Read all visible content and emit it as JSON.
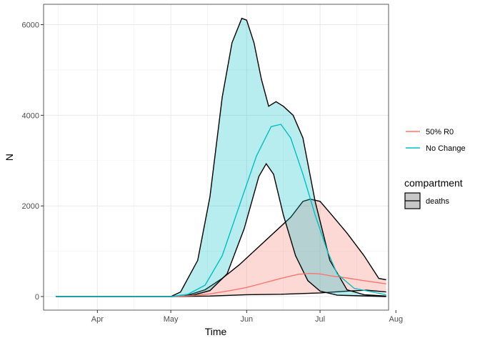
{
  "chart_data": {
    "type": "area",
    "xlabel": "Time",
    "ylabel": "N",
    "x_ticks": [
      "Apr",
      "May",
      "Jun",
      "Jul",
      "Aug"
    ],
    "y_ticks": [
      0,
      2000,
      4000,
      6000
    ],
    "xlim": [
      "2020-03-10",
      "2020-07-29"
    ],
    "ylim": [
      -300,
      6450
    ],
    "grid": true,
    "legend_position": "right",
    "legends": [
      {
        "title": "",
        "entries": [
          "50% R0",
          "No Change"
        ]
      },
      {
        "title": "compartment",
        "entries": [
          "deaths"
        ]
      }
    ],
    "series": [
      {
        "name": "50% R0",
        "color": "#F8766D",
        "median": [
          [
            "2020-03-15",
            0
          ],
          [
            "2020-04-15",
            0
          ],
          [
            "2020-05-01",
            0
          ],
          [
            "2020-05-10",
            20
          ],
          [
            "2020-05-17",
            60
          ],
          [
            "2020-05-24",
            120
          ],
          [
            "2020-06-01",
            200
          ],
          [
            "2020-06-08",
            300
          ],
          [
            "2020-06-15",
            400
          ],
          [
            "2020-06-22",
            490
          ],
          [
            "2020-06-27",
            510
          ],
          [
            "2020-07-01",
            500
          ],
          [
            "2020-07-05",
            460
          ],
          [
            "2020-07-12",
            410
          ],
          [
            "2020-07-19",
            350
          ],
          [
            "2020-07-28",
            280
          ]
        ],
        "lower": [
          [
            "2020-03-15",
            0
          ],
          [
            "2020-04-15",
            0
          ],
          [
            "2020-05-01",
            0
          ],
          [
            "2020-05-17",
            10
          ],
          [
            "2020-06-01",
            40
          ],
          [
            "2020-06-15",
            50
          ],
          [
            "2020-07-01",
            80
          ],
          [
            "2020-07-12",
            120
          ],
          [
            "2020-07-20",
            140
          ],
          [
            "2020-07-28",
            100
          ]
        ],
        "upper": [
          [
            "2020-03-15",
            0
          ],
          [
            "2020-04-15",
            0
          ],
          [
            "2020-05-01",
            0
          ],
          [
            "2020-05-08",
            30
          ],
          [
            "2020-05-15",
            150
          ],
          [
            "2020-05-22",
            400
          ],
          [
            "2020-05-29",
            700
          ],
          [
            "2020-06-05",
            1050
          ],
          [
            "2020-06-12",
            1400
          ],
          [
            "2020-06-19",
            1750
          ],
          [
            "2020-06-24",
            2100
          ],
          [
            "2020-06-27",
            2150
          ],
          [
            "2020-07-01",
            2100
          ],
          [
            "2020-07-05",
            1850
          ],
          [
            "2020-07-12",
            1400
          ],
          [
            "2020-07-19",
            900
          ],
          [
            "2020-07-25",
            400
          ],
          [
            "2020-07-28",
            370
          ]
        ]
      },
      {
        "name": "No Change",
        "color": "#00BFC4",
        "median": [
          [
            "2020-03-15",
            0
          ],
          [
            "2020-04-15",
            0
          ],
          [
            "2020-05-01",
            0
          ],
          [
            "2020-05-08",
            50
          ],
          [
            "2020-05-15",
            250
          ],
          [
            "2020-05-22",
            900
          ],
          [
            "2020-05-29",
            2000
          ],
          [
            "2020-06-05",
            3100
          ],
          [
            "2020-06-11",
            3750
          ],
          [
            "2020-06-15",
            3800
          ],
          [
            "2020-06-19",
            3500
          ],
          [
            "2020-06-24",
            2700
          ],
          [
            "2020-06-29",
            1800
          ],
          [
            "2020-07-04",
            1000
          ],
          [
            "2020-07-08",
            500
          ],
          [
            "2020-07-15",
            180
          ],
          [
            "2020-07-28",
            40
          ]
        ],
        "lower": [
          [
            "2020-03-15",
            0
          ],
          [
            "2020-04-15",
            0
          ],
          [
            "2020-05-01",
            0
          ],
          [
            "2020-05-10",
            30
          ],
          [
            "2020-05-17",
            130
          ],
          [
            "2020-05-24",
            500
          ],
          [
            "2020-05-31",
            1500
          ],
          [
            "2020-06-06",
            2650
          ],
          [
            "2020-06-09",
            2930
          ],
          [
            "2020-06-12",
            2700
          ],
          [
            "2020-06-16",
            1800
          ],
          [
            "2020-06-21",
            900
          ],
          [
            "2020-06-26",
            350
          ],
          [
            "2020-07-01",
            120
          ],
          [
            "2020-07-08",
            30
          ],
          [
            "2020-07-28",
            0
          ]
        ],
        "upper": [
          [
            "2020-03-15",
            0
          ],
          [
            "2020-04-15",
            0
          ],
          [
            "2020-05-01",
            0
          ],
          [
            "2020-05-05",
            100
          ],
          [
            "2020-05-12",
            800
          ],
          [
            "2020-05-17",
            2200
          ],
          [
            "2020-05-22",
            4400
          ],
          [
            "2020-05-26",
            5600
          ],
          [
            "2020-05-30",
            6140
          ],
          [
            "2020-06-01",
            6100
          ],
          [
            "2020-06-04",
            5600
          ],
          [
            "2020-06-07",
            4800
          ],
          [
            "2020-06-10",
            4200
          ],
          [
            "2020-06-13",
            4300
          ],
          [
            "2020-06-16",
            4200
          ],
          [
            "2020-06-20",
            4000
          ],
          [
            "2020-06-24",
            3500
          ],
          [
            "2020-06-29",
            2100
          ],
          [
            "2020-07-05",
            800
          ],
          [
            "2020-07-12",
            150
          ],
          [
            "2020-07-19",
            40
          ],
          [
            "2020-07-28",
            10
          ]
        ]
      }
    ]
  }
}
